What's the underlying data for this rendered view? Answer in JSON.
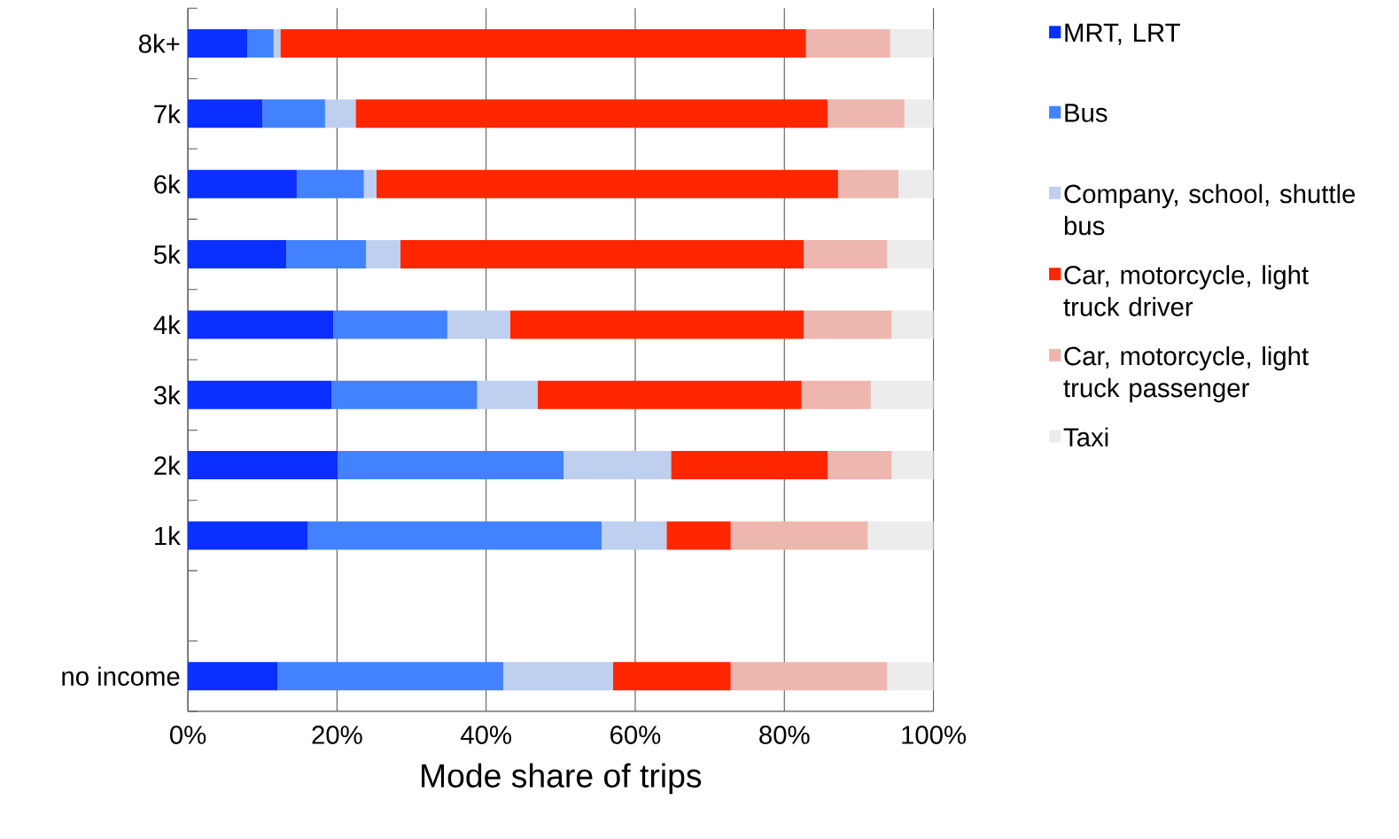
{
  "chart_data": {
    "type": "bar",
    "orientation": "horizontal",
    "stacked": true,
    "xlabel": "Mode share of trips",
    "categories": [
      "8k+",
      "7k",
      "6k",
      "5k",
      "4k",
      "3k",
      "2k",
      "1k",
      null,
      "no income"
    ],
    "series": [
      {
        "name": "MRT, LRT",
        "color": "#0a2fff",
        "values": [
          8.0,
          10.0,
          14.6,
          13.2,
          19.5,
          19.3,
          20.1,
          16.1,
          null,
          12.0
        ]
      },
      {
        "name": "Bus",
        "color": "#4382ff",
        "values": [
          3.5,
          8.4,
          9.0,
          10.7,
          15.3,
          19.5,
          30.3,
          39.4,
          null,
          30.3
        ]
      },
      {
        "name": "Company, school, shuttle bus",
        "color": "#bfcff0",
        "values": [
          0.9,
          4.1,
          1.7,
          4.6,
          8.4,
          8.1,
          14.4,
          8.7,
          null,
          14.7
        ]
      },
      {
        "name": "Car, motorcycle, light truck driver",
        "color": "#ff2600",
        "values": [
          70.5,
          63.3,
          61.9,
          54.1,
          39.4,
          35.4,
          21.0,
          8.6,
          null,
          15.8
        ]
      },
      {
        "name": "Car, motorcycle, light truck passenger",
        "color": "#edb6ae",
        "values": [
          11.3,
          10.3,
          8.1,
          11.2,
          11.8,
          9.3,
          8.6,
          18.4,
          null,
          21.0
        ]
      },
      {
        "name": "Taxi",
        "color": "#ececec",
        "values": [
          5.8,
          3.9,
          4.7,
          6.2,
          5.6,
          8.4,
          5.6,
          8.8,
          null,
          6.2
        ]
      }
    ],
    "xlim": [
      0,
      100
    ],
    "xticks": [
      {
        "value": 0,
        "label": "0%"
      },
      {
        "value": 20,
        "label": "20%"
      },
      {
        "value": 40,
        "label": "40%"
      },
      {
        "value": 60,
        "label": "60%"
      },
      {
        "value": 80,
        "label": "80%"
      },
      {
        "value": 100,
        "label": "100%"
      }
    ],
    "grid": "x",
    "legend": "right"
  }
}
